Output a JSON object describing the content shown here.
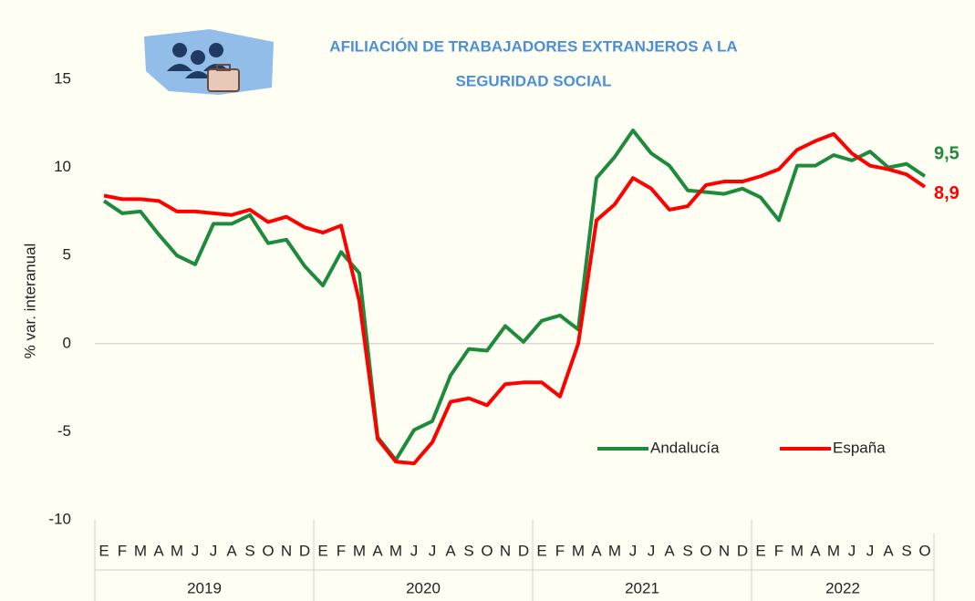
{
  "chart_data": {
    "type": "line",
    "title": [
      "AFILIACIÓN DE TRABAJADORES EXTRANJEROS A LA",
      "SEGURIDAD SOCIAL"
    ],
    "y_label": "% var. interanual",
    "categories": [
      "E",
      "F",
      "M",
      "A",
      "M",
      "J",
      "J",
      "A",
      "S",
      "O",
      "N",
      "D",
      "E",
      "F",
      "M",
      "A",
      "M",
      "J",
      "J",
      "A",
      "S",
      "O",
      "N",
      "D",
      "E",
      "F",
      "M",
      "A",
      "M",
      "J",
      "J",
      "A",
      "S",
      "O",
      "N",
      "D",
      "E",
      "F",
      "M",
      "A",
      "M",
      "J",
      "J",
      "A",
      "S",
      "O"
    ],
    "groups": [
      "2019",
      "2020",
      "2021",
      "2022"
    ],
    "series": [
      {
        "name": "Andalucía",
        "color": "#1e8a3c",
        "values": [
          8.1,
          7.4,
          7.5,
          6.2,
          5.0,
          4.5,
          6.8,
          6.8,
          7.3,
          5.7,
          5.9,
          4.4,
          3.3,
          5.2,
          4.0,
          -5.3,
          -6.6,
          -4.9,
          -4.4,
          -1.8,
          -0.3,
          -0.4,
          1.0,
          0.1,
          1.3,
          1.6,
          0.8,
          9.4,
          10.6,
          12.1,
          10.8,
          10.1,
          8.7,
          8.6,
          8.5,
          8.8,
          8.3,
          7.0,
          10.1,
          10.1,
          10.7,
          10.4,
          10.9,
          10.0,
          10.2,
          9.5
        ],
        "value_labels": [
          null,
          null,
          null,
          null,
          null,
          null,
          null,
          null,
          null,
          null,
          null,
          null,
          null,
          null,
          null,
          null,
          null,
          null,
          null,
          null,
          null,
          null,
          null,
          null,
          null,
          null,
          null,
          null,
          null,
          null,
          null,
          null,
          null,
          null,
          null,
          null,
          null,
          null,
          null,
          null,
          null,
          null,
          null,
          null,
          null,
          "9,5"
        ]
      },
      {
        "name": "España",
        "color": "#ff0000",
        "values": [
          8.4,
          8.2,
          8.2,
          8.1,
          7.5,
          7.5,
          7.4,
          7.3,
          7.6,
          6.9,
          7.2,
          6.6,
          6.3,
          6.7,
          2.4,
          -5.4,
          -6.7,
          -6.8,
          -5.6,
          -3.3,
          -3.1,
          -3.5,
          -2.3,
          -2.2,
          -2.2,
          -3.0,
          0.0,
          7.0,
          7.9,
          9.4,
          8.8,
          7.6,
          7.8,
          9.0,
          9.2,
          9.2,
          9.5,
          9.9,
          11.0,
          11.5,
          11.9,
          10.8,
          10.1,
          9.9,
          9.6,
          8.9
        ],
        "value_labels": [
          null,
          null,
          null,
          null,
          null,
          null,
          null,
          null,
          null,
          null,
          null,
          null,
          null,
          null,
          null,
          null,
          null,
          null,
          null,
          null,
          null,
          null,
          null,
          null,
          null,
          null,
          null,
          null,
          null,
          null,
          null,
          null,
          null,
          null,
          null,
          null,
          null,
          null,
          null,
          null,
          null,
          null,
          null,
          null,
          null,
          "8,9"
        ]
      }
    ],
    "ylim": [
      -10,
      15
    ],
    "yticks": [
      -10,
      -5,
      0,
      5,
      10,
      15
    ],
    "grid": false,
    "legend": "lower right"
  }
}
